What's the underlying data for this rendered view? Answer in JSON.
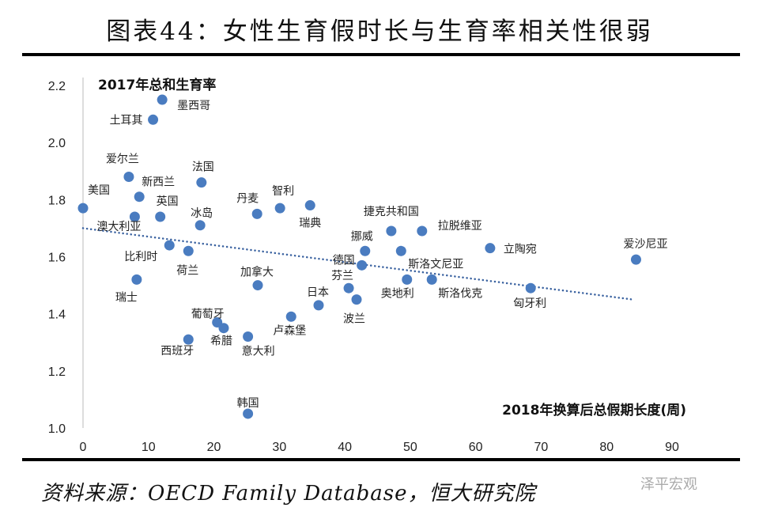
{
  "title": "图表44：女性生育假时长与生育率相关性很弱",
  "source": "资料来源：OECD Family Database，恒大研究院",
  "watermark": "泽平宏观",
  "chart_data": {
    "type": "scatter",
    "title": "",
    "xlabel": "2018年换算后总假期长度(周)",
    "ylabel": "2017年总和生育率",
    "xlim": [
      0,
      90
    ],
    "ylim": [
      1.0,
      2.2
    ],
    "xticks": [
      "0",
      "10",
      "20",
      "30",
      "40",
      "50",
      "60",
      "70",
      "80",
      "90"
    ],
    "yticks": [
      "1.0",
      "1.2",
      "1.4",
      "1.6",
      "1.8",
      "2.0",
      "2.2"
    ],
    "grid": false,
    "marker_color": "#4a7cc0",
    "trendline": {
      "style": "dotted",
      "x": [
        0,
        84
      ],
      "y": [
        1.7,
        1.45
      ]
    },
    "points": [
      {
        "label": "美国",
        "x": 0,
        "y": 1.77
      },
      {
        "label": "墨西哥",
        "x": 12.1,
        "y": 2.15
      },
      {
        "label": "土耳其",
        "x": 10.7,
        "y": 2.08
      },
      {
        "label": "爱尔兰",
        "x": 7.0,
        "y": 1.88
      },
      {
        "label": "新西兰",
        "x": 8.6,
        "y": 1.81
      },
      {
        "label": "法国",
        "x": 18.1,
        "y": 1.86
      },
      {
        "label": "英国",
        "x": 11.8,
        "y": 1.74
      },
      {
        "label": "澳大利亚",
        "x": 7.9,
        "y": 1.74
      },
      {
        "label": "冰岛",
        "x": 17.9,
        "y": 1.71
      },
      {
        "label": "丹麦",
        "x": 26.6,
        "y": 1.75
      },
      {
        "label": "智利",
        "x": 30.1,
        "y": 1.77
      },
      {
        "label": "瑞典",
        "x": 34.7,
        "y": 1.78
      },
      {
        "label": "比利时",
        "x": 13.2,
        "y": 1.64
      },
      {
        "label": "荷兰",
        "x": 16.1,
        "y": 1.62
      },
      {
        "label": "瑞士",
        "x": 8.2,
        "y": 1.52
      },
      {
        "label": "加拿大",
        "x": 26.7,
        "y": 1.5
      },
      {
        "label": "捷克共和国",
        "x": 47.1,
        "y": 1.69
      },
      {
        "label": "拉脱维亚",
        "x": 51.8,
        "y": 1.69
      },
      {
        "label": "挪威",
        "x": 43.1,
        "y": 1.62
      },
      {
        "label": "斯洛文尼亚",
        "x": 48.6,
        "y": 1.62
      },
      {
        "label": "德国",
        "x": 42.6,
        "y": 1.57
      },
      {
        "label": "立陶宛",
        "x": 62.2,
        "y": 1.63
      },
      {
        "label": "爱沙尼亚",
        "x": 84.5,
        "y": 1.59
      },
      {
        "label": "芬兰",
        "x": 40.6,
        "y": 1.49
      },
      {
        "label": "奥地利",
        "x": 49.5,
        "y": 1.52
      },
      {
        "label": "斯洛伐克",
        "x": 53.3,
        "y": 1.52
      },
      {
        "label": "匈牙利",
        "x": 68.4,
        "y": 1.49
      },
      {
        "label": "日本",
        "x": 36.0,
        "y": 1.43
      },
      {
        "label": "波兰",
        "x": 41.8,
        "y": 1.45
      },
      {
        "label": "卢森堡",
        "x": 31.8,
        "y": 1.39
      },
      {
        "label": "葡萄牙",
        "x": 20.5,
        "y": 1.37
      },
      {
        "label": "希腊",
        "x": 21.5,
        "y": 1.35
      },
      {
        "label": "意大利",
        "x": 25.2,
        "y": 1.32
      },
      {
        "label": "西班牙",
        "x": 16.1,
        "y": 1.31
      },
      {
        "label": "韩国",
        "x": 25.2,
        "y": 1.05
      }
    ]
  }
}
